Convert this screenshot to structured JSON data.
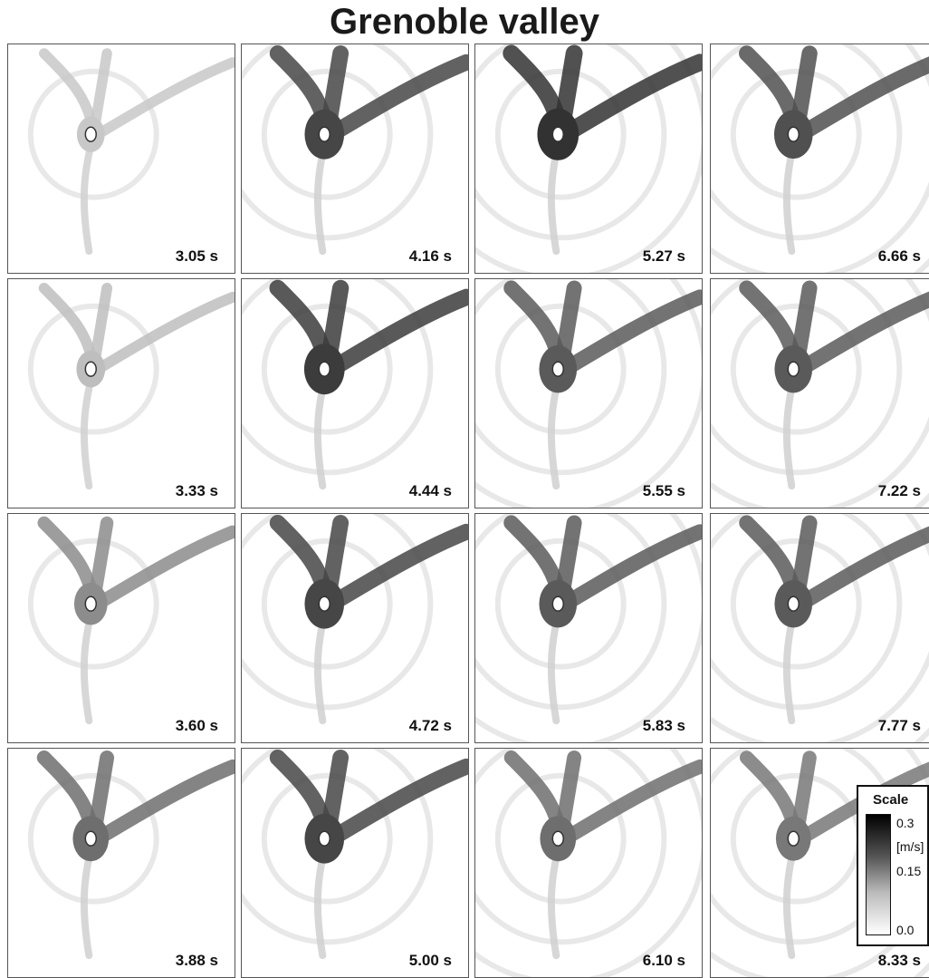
{
  "title": "Grenoble valley",
  "panels": [
    [
      "3.05 s",
      "4.16 s",
      "5.27 s",
      "6.66 s"
    ],
    [
      "3.33 s",
      "4.44 s",
      "5.55 s",
      "7.22 s"
    ],
    [
      "3.60 s",
      "4.72 s",
      "5.83 s",
      "7.77 s"
    ],
    [
      "3.88 s",
      "5.00 s",
      "6.10 s",
      "8.33 s"
    ]
  ],
  "scale": {
    "title": "Scale",
    "max": "0.3",
    "unit": "[m/s]",
    "mid": "0.15",
    "min": "0.0"
  }
}
